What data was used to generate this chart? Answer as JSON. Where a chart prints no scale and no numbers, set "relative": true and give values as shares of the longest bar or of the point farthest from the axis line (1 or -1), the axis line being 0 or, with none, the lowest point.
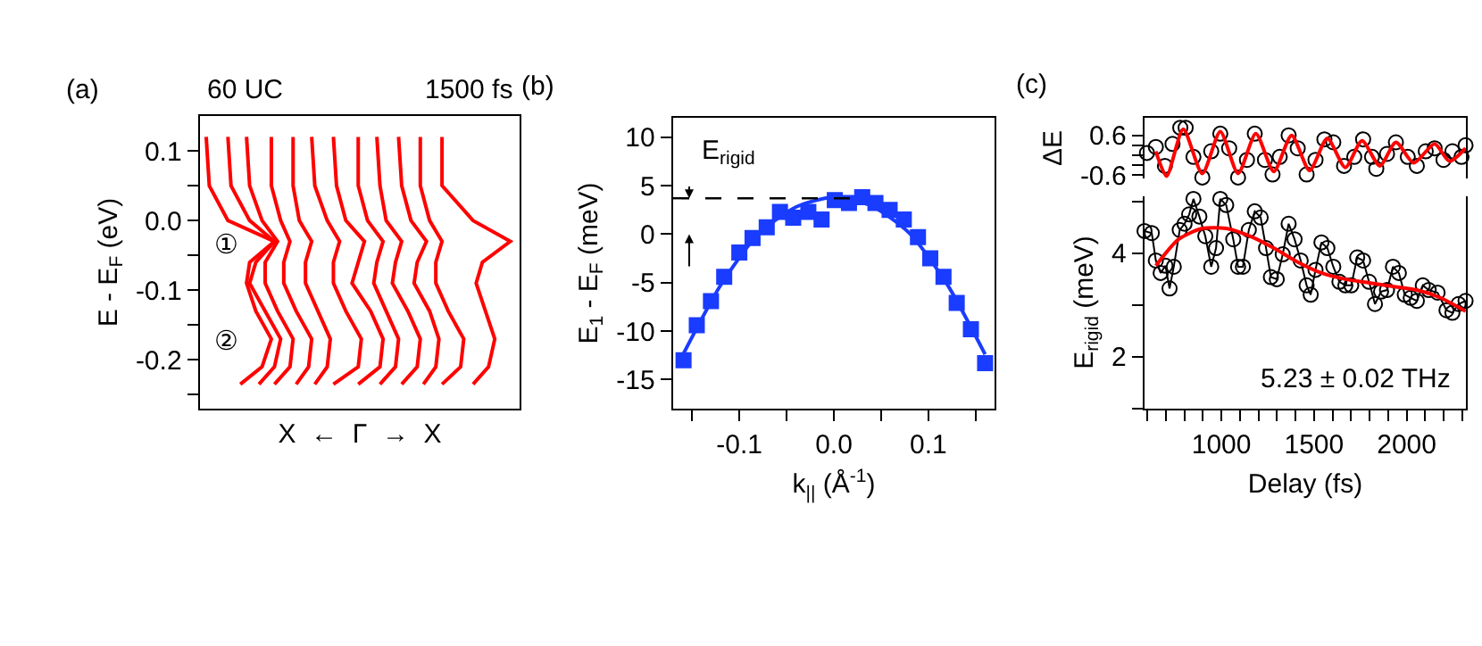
{
  "chart_data": [
    {
      "type": "line",
      "orientation": "horizontal",
      "relative": true,
      "xlabel": "X  ←  Γ  →  X",
      "ylabel": "E - E$_{F}$ (eV)",
      "ylim": [
        -0.27,
        0.15
      ],
      "yticks": [
        {
          "value": -0.25,
          "label": null
        },
        -0.2,
        {
          "value": -0.15,
          "label": null
        },
        -0.1,
        {
          "value": -0.05,
          "label": null
        },
        {
          "value": 0,
          "label": "0.0"
        },
        {
          "value": 0.05,
          "label": null
        },
        0.1
      ],
      "grid": false,
      "marker": "none",
      "annotations": [
        "(a)",
        "60 UC",
        "1500 fs",
        "①",
        "②"
      ],
      "series": [
        {
          "color": "#ff0000",
          "x": [
            0.12,
            0.05,
            0.0,
            -0.03,
            -0.06,
            -0.09,
            -0.13,
            -0.17,
            -0.21,
            -0.235
          ],
          "values": [
            0.02,
            0.03,
            0.09,
            0.24,
            0.16,
            0.15,
            0.18,
            0.23,
            0.2,
            0.13
          ]
        },
        {
          "color": "#ff0000",
          "x": [
            0.12,
            0.05,
            0.0,
            -0.03,
            -0.06,
            -0.09,
            -0.13,
            -0.17,
            -0.21,
            -0.235
          ],
          "values": [
            0.09,
            0.1,
            0.16,
            0.24,
            0.18,
            0.16,
            0.21,
            0.26,
            0.24,
            0.19
          ]
        },
        {
          "color": "#ff0000",
          "x": [
            0.12,
            0.05,
            0.0,
            -0.03,
            -0.06,
            -0.09,
            -0.13,
            -0.17,
            -0.21,
            -0.235
          ],
          "values": [
            0.15,
            0.16,
            0.2,
            0.25,
            0.21,
            0.21,
            0.25,
            0.3,
            0.29,
            0.24
          ]
        },
        {
          "color": "#ff0000",
          "x": [
            0.12,
            0.05,
            0.0,
            -0.03,
            -0.06,
            -0.09,
            -0.13,
            -0.17,
            -0.21,
            -0.235
          ],
          "values": [
            0.23,
            0.23,
            0.26,
            0.29,
            0.27,
            0.27,
            0.31,
            0.36,
            0.35,
            0.31
          ]
        },
        {
          "color": "#ff0000",
          "x": [
            0.12,
            0.05,
            0.0,
            -0.03,
            -0.06,
            -0.09,
            -0.13,
            -0.17,
            -0.21,
            -0.235
          ],
          "values": [
            0.3,
            0.3,
            0.32,
            0.36,
            0.34,
            0.34,
            0.38,
            0.42,
            0.41,
            0.37
          ]
        },
        {
          "color": "#ff0000",
          "x": [
            0.12,
            0.05,
            0.0,
            -0.03,
            -0.06,
            -0.09,
            -0.13,
            -0.17,
            -0.21,
            -0.235
          ],
          "values": [
            0.36,
            0.37,
            0.41,
            0.45,
            0.43,
            0.43,
            0.47,
            0.52,
            0.51,
            0.43
          ]
        },
        {
          "color": "#ff0000",
          "x": [
            0.12,
            0.05,
            0.0,
            -0.03,
            -0.06,
            -0.09,
            -0.13,
            -0.17,
            -0.21,
            -0.235
          ],
          "values": [
            0.43,
            0.44,
            0.47,
            0.53,
            0.51,
            0.49,
            0.55,
            0.59,
            0.58,
            0.51
          ]
        },
        {
          "color": "#ff0000",
          "x": [
            0.12,
            0.05,
            0.0,
            -0.03,
            -0.06,
            -0.09,
            -0.13,
            -0.17,
            -0.21,
            -0.235
          ],
          "values": [
            0.51,
            0.51,
            0.54,
            0.59,
            0.57,
            0.56,
            0.6,
            0.64,
            0.63,
            0.58
          ]
        },
        {
          "color": "#ff0000",
          "x": [
            0.12,
            0.05,
            0.0,
            -0.03,
            -0.06,
            -0.09,
            -0.13,
            -0.17,
            -0.21,
            -0.235
          ],
          "values": [
            0.57,
            0.58,
            0.6,
            0.65,
            0.63,
            0.62,
            0.67,
            0.71,
            0.7,
            0.65
          ]
        },
        {
          "color": "#ff0000",
          "x": [
            0.12,
            0.05,
            0.0,
            -0.03,
            -0.06,
            -0.09,
            -0.13,
            -0.17,
            -0.21,
            -0.235
          ],
          "values": [
            0.64,
            0.65,
            0.68,
            0.73,
            0.7,
            0.69,
            0.74,
            0.77,
            0.76,
            0.72
          ]
        },
        {
          "color": "#ff0000",
          "x": [
            0.12,
            0.05,
            0.0,
            -0.03,
            -0.06,
            -0.09,
            -0.13,
            -0.17,
            -0.21,
            -0.235
          ],
          "values": [
            0.71,
            0.71,
            0.74,
            0.78,
            0.76,
            0.76,
            0.8,
            0.85,
            0.84,
            0.78
          ]
        },
        {
          "color": "#ff0000",
          "x": [
            0.12,
            0.05,
            0.0,
            -0.03,
            -0.06,
            -0.09,
            -0.13,
            -0.17,
            -0.21,
            -0.235
          ],
          "values": [
            0.78,
            0.78,
            0.88,
            1,
            0.91,
            0.89,
            0.92,
            0.95,
            0.93,
            0.88
          ]
        }
      ]
    },
    {
      "type": "scatter",
      "xlabel": "k$_{||}$ (Å$^{-1}$)",
      "ylabel": "E$_{1}$ - E$_{F}$ (meV)",
      "xlim": [
        -0.17,
        0.17
      ],
      "ylim": [
        -18,
        12
      ],
      "xticks": [
        {
          "value": -0.15,
          "label": null
        },
        -0.1,
        {
          "value": -0.05,
          "label": null
        },
        {
          "value": 0,
          "label": "0.0"
        },
        {
          "value": 0.05,
          "label": null
        },
        0.1,
        {
          "value": 0.15,
          "label": null
        }
      ],
      "yticks": [
        -15,
        -10,
        -5,
        0,
        5,
        10
      ],
      "grid": false,
      "annotations": [
        "(b)"
      ],
      "ref_lines": [
        {
          "axis": "y",
          "value": 3.7,
          "label": "E$_{rigid}$",
          "line_style": "dashed",
          "color": "#000000"
        }
      ],
      "series": [
        {
          "type": "scatter",
          "marker": "square",
          "color": "#1a3cff",
          "x": [
            -0.159,
            -0.145,
            -0.13,
            -0.116,
            -0.1,
            -0.086,
            -0.071,
            -0.057,
            -0.043,
            -0.027,
            -0.013,
            0.001,
            0.016,
            0.03,
            0.044,
            0.059,
            0.074,
            0.089,
            0.102,
            0.116,
            0.13,
            0.145,
            0.16
          ],
          "values": [
            -13.0,
            -9.4,
            -6.9,
            -4.4,
            -1.9,
            -0.4,
            0.7,
            2.3,
            1.7,
            2.3,
            1.5,
            3.5,
            3.2,
            3.8,
            3.2,
            2.5,
            1.5,
            -0.3,
            -2.5,
            -4.4,
            -7.1,
            -9.8,
            -13.3
          ]
        },
        {
          "type": "line",
          "marker": "none",
          "color": "#1a3cff",
          "x": [
            -0.16,
            -0.12,
            -0.08,
            -0.04,
            0.0,
            0.04,
            0.08,
            0.12,
            0.16
          ],
          "values": [
            -12.5,
            -5.3,
            0.0,
            2.8,
            3.8,
            2.9,
            0.1,
            -5.2,
            -12.4
          ]
        }
      ]
    },
    {
      "type": "scatter",
      "ylabel": "ΔE",
      "xlim": [
        585,
        2320
      ],
      "ylim": [
        -0.7,
        1.13
      ],
      "yticks": [
        -0.6,
        {
          "value": -0.3,
          "label": null
        },
        {
          "value": 0,
          "label": null
        },
        {
          "value": 0.3,
          "label": null
        },
        0.6
      ],
      "tick_labels": "y",
      "grid": false,
      "annotations": [
        "(c)"
      ],
      "series": [
        {
          "type": "scatter",
          "marker": "circle",
          "color": "#000000",
          "x": [
            598,
            646,
            695,
            736,
            778,
            807,
            849,
            897,
            945,
            994,
            1042,
            1090,
            1138,
            1180,
            1235,
            1276,
            1315,
            1363,
            1412,
            1460,
            1508,
            1556,
            1604,
            1662,
            1717,
            1765,
            1813,
            1836,
            1894,
            1942,
            2006,
            2055,
            2103,
            2151,
            2199,
            2247,
            2296,
            2318
          ],
          "values": [
            0.07,
            0.25,
            -0.32,
            0.34,
            0.83,
            0.83,
            -0.05,
            -0.67,
            0.12,
            0.65,
            0.21,
            -0.67,
            -0.14,
            0.65,
            -0.14,
            -0.58,
            -0.05,
            0.6,
            0.21,
            -0.58,
            -0.14,
            0.48,
            0.39,
            -0.32,
            -0.05,
            0.48,
            -0.05,
            -0.41,
            0.04,
            0.39,
            -0.05,
            -0.32,
            0.12,
            0.21,
            -0.14,
            0.12,
            -0.05,
            0.3
          ]
        },
        {
          "type": "line",
          "marker": "none",
          "color": "#ff0000",
          "x": [
            646,
            704,
            794,
            897,
            994,
            1090,
            1186,
            1283,
            1379,
            1476,
            1572,
            1669,
            1759,
            1855,
            1942,
            2038,
            2151,
            2231,
            2318
          ],
          "values": [
            0.12,
            -0.63,
            0.79,
            -0.55,
            0.71,
            -0.55,
            0.65,
            -0.49,
            0.6,
            -0.46,
            0.51,
            -0.37,
            0.44,
            -0.32,
            0.39,
            -0.23,
            0.34,
            -0.18,
            0.21
          ]
        }
      ]
    },
    {
      "type": "line",
      "xlabel": "Delay (fs)",
      "ylabel": "E$_{rigid}$ (meV)",
      "xlim": [
        585,
        2320
      ],
      "ylim": [
        1,
        5.1
      ],
      "xticks": [
        {
          "value": 600,
          "label": null
        },
        {
          "value": 700,
          "label": null
        },
        {
          "value": 800,
          "label": null
        },
        {
          "value": 900,
          "label": null
        },
        1000,
        {
          "value": 1100,
          "label": null
        },
        {
          "value": 1200,
          "label": null
        },
        {
          "value": 1300,
          "label": null
        },
        {
          "value": 1400,
          "label": null
        },
        1500,
        {
          "value": 1600,
          "label": null
        },
        {
          "value": 1700,
          "label": null
        },
        {
          "value": 1800,
          "label": null
        },
        {
          "value": 1900,
          "label": null
        },
        2000,
        {
          "value": 2100,
          "label": null
        },
        {
          "value": 2200,
          "label": null
        },
        {
          "value": 2300,
          "label": null
        }
      ],
      "yticks": [
        {
          "value": 1,
          "label": null
        },
        2,
        {
          "value": 3,
          "label": null
        },
        4,
        {
          "value": 5,
          "label": null
        }
      ],
      "grid": false,
      "annotations": [
        "5.23 ± 0.02 THz"
      ],
      "series": [
        {
          "type": "line",
          "marker": "circle",
          "color": "#000000",
          "x": [
            585,
            624,
            646,
            672,
            698,
            720,
            743,
            775,
            801,
            826,
            849,
            881,
            913,
            945,
            971,
            994,
            1026,
            1064,
            1090,
            1116,
            1148,
            1180,
            1212,
            1241,
            1267,
            1299,
            1331,
            1363,
            1395,
            1428,
            1460,
            1482,
            1508,
            1540,
            1572,
            1604,
            1637,
            1669,
            1701,
            1733,
            1765,
            1797,
            1829,
            1862,
            1894,
            1926,
            1958,
            1990,
            2022,
            2055,
            2087,
            2119,
            2167,
            2215,
            2247,
            2280,
            2318
          ],
          "values": [
            4.43,
            4.39,
            3.86,
            3.62,
            3.76,
            3.32,
            3.74,
            4.45,
            4.57,
            4.75,
            5.05,
            4.71,
            4.33,
            3.74,
            4.1,
            5.05,
            4.93,
            4.27,
            3.74,
            3.74,
            4.45,
            4.81,
            4.69,
            4.1,
            3.54,
            3.5,
            3.98,
            4.57,
            4.27,
            3.86,
            3.38,
            3.2,
            3.68,
            4.21,
            4.1,
            3.74,
            3.45,
            3.38,
            3.38,
            3.92,
            3.86,
            3.45,
            3.02,
            3.26,
            3.29,
            3.74,
            3.62,
            3.2,
            3.14,
            3.08,
            3.38,
            3.29,
            3.24,
            2.9,
            2.85,
            3.02,
            3.08
          ]
        },
        {
          "type": "line",
          "marker": "none",
          "color": "#ff0000",
          "x": [
            646,
            769,
            897,
            1026,
            1154,
            1283,
            1412,
            1540,
            1669,
            1797,
            1926,
            2055,
            2183,
            2318
          ],
          "values": [
            3.76,
            4.27,
            4.48,
            4.48,
            4.33,
            4.1,
            3.83,
            3.62,
            3.5,
            3.43,
            3.36,
            3.29,
            3.14,
            2.88
          ]
        }
      ]
    }
  ]
}
